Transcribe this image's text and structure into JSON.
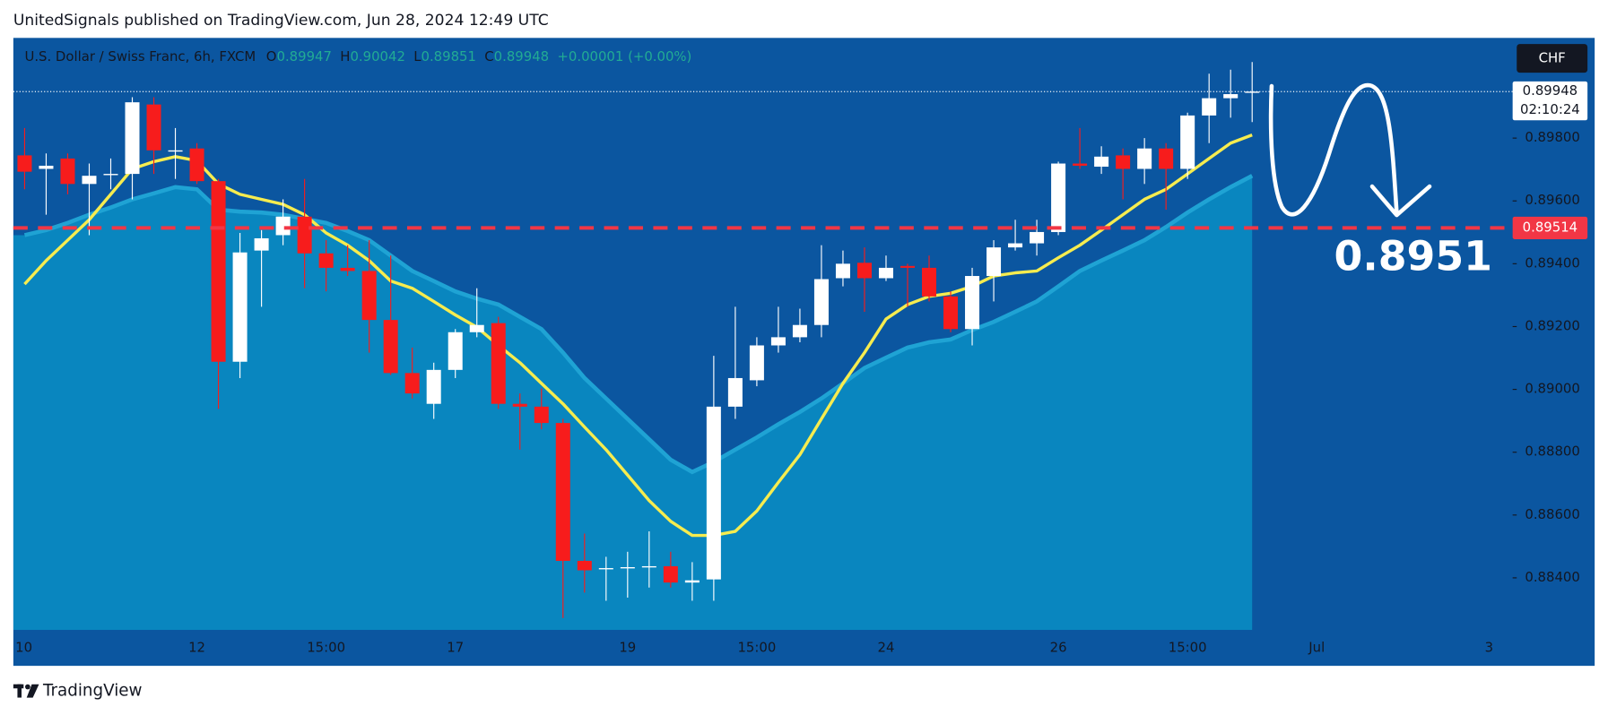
{
  "header": "UnitedSignals published on TradingView.com, Jun 28, 2024 12:49 UTC",
  "footer_brand": "TradingView",
  "chart_data": {
    "type": "candlestick",
    "title": "U.S. Dollar / Swiss Franc, 6h, FXCM",
    "ohlc_labels": [
      "O",
      "H",
      "L",
      "C"
    ],
    "change_label": "+0.00001 (+0.00%)",
    "currency": "CHF",
    "countdown": "02:10:24",
    "annotation": "0.8951",
    "up_color": "#ffffff",
    "down_color": "#f71c1c",
    "categories": [
      "10",
      null,
      null,
      null,
      null,
      null,
      null,
      null,
      "12",
      null,
      null,
      null,
      null,
      null,
      "15:00",
      null,
      null,
      null,
      null,
      null,
      "17",
      null,
      null,
      null,
      null,
      null,
      null,
      null,
      "19",
      null,
      null,
      null,
      null,
      null,
      "15:00",
      null,
      null,
      null,
      null,
      null,
      "24",
      null,
      null,
      null,
      null,
      null,
      null,
      null,
      "26",
      null,
      null,
      null,
      null,
      null,
      "15:00",
      null,
      null,
      null,
      null,
      null,
      "Jul",
      null,
      null,
      null,
      null,
      null,
      null,
      null,
      "3"
    ],
    "open": [
      0.89745,
      0.89702,
      0.89735,
      0.89654,
      0.89686,
      0.89686,
      0.89907,
      0.89761,
      0.89767,
      0.89663,
      0.89088,
      0.89442,
      0.89491,
      0.8955,
      0.89433,
      0.89387,
      0.89377,
      0.89221,
      0.89052,
      0.88954,
      0.89062,
      0.89182,
      0.89211,
      0.88954,
      0.88945,
      0.88893,
      0.88454,
      0.88428,
      0.88431,
      0.88434,
      0.88437,
      0.88385,
      0.88395,
      0.88945,
      0.89029,
      0.8914,
      0.89166,
      0.89205,
      0.89354,
      0.89403,
      0.89354,
      0.89393,
      0.89387,
      0.89296,
      0.89192,
      0.89361,
      0.89452,
      0.89465,
      0.89501,
      0.89719,
      0.89709,
      0.89745,
      0.89702,
      0.89767,
      0.89702,
      0.89872,
      0.89927,
      0.89947,
      null,
      null,
      null,
      null,
      null,
      null,
      null,
      null,
      null,
      null,
      null
    ],
    "high": [
      0.89832,
      0.89751,
      0.89751,
      0.89719,
      0.89735,
      0.8993,
      0.8993,
      0.89832,
      0.89784,
      0.8967,
      0.89498,
      0.89507,
      0.89605,
      0.8967,
      0.89475,
      0.89459,
      0.89475,
      0.89426,
      0.89133,
      0.89085,
      0.89192,
      0.89322,
      0.89231,
      0.88987,
      0.89003,
      0.88906,
      0.88541,
      0.88467,
      0.88483,
      0.88548,
      0.88483,
      0.8845,
      0.89107,
      0.89263,
      0.89166,
      0.89263,
      0.89257,
      0.89459,
      0.89442,
      0.89452,
      0.89426,
      0.894,
      0.89426,
      0.89312,
      0.89387,
      0.89475,
      0.8954,
      0.8954,
      0.89725,
      0.89832,
      0.89774,
      0.89767,
      0.898,
      0.89784,
      0.89881,
      0.90005,
      0.90018,
      0.90042,
      null,
      null,
      null,
      null,
      null,
      null,
      null,
      null,
      null,
      null,
      null
    ],
    "low": [
      0.89637,
      0.89556,
      0.89621,
      0.89491,
      0.89637,
      0.89605,
      0.89686,
      0.8967,
      0.89654,
      0.88938,
      0.89036,
      0.89263,
      0.89459,
      0.89322,
      0.89312,
      0.89361,
      0.89117,
      0.89046,
      0.88971,
      0.88906,
      0.89036,
      0.89166,
      0.88938,
      0.88808,
      0.88873,
      0.88272,
      0.88353,
      0.88327,
      0.88337,
      0.88369,
      0.88369,
      0.88327,
      0.88327,
      0.88906,
      0.8901,
      0.89117,
      0.8915,
      0.89166,
      0.89328,
      0.89247,
      0.89345,
      0.89263,
      0.8928,
      0.89182,
      0.8914,
      0.8928,
      0.89442,
      0.89426,
      0.89491,
      0.89702,
      0.89686,
      0.89605,
      0.89654,
      0.89572,
      0.8967,
      0.89784,
      0.89865,
      0.89851,
      null,
      null,
      null,
      null,
      null,
      null,
      null,
      null,
      null,
      null,
      null
    ],
    "close": [
      0.89693,
      0.89712,
      0.89654,
      0.8968,
      0.89686,
      0.89914,
      0.89761,
      0.89761,
      0.89663,
      0.89088,
      0.89436,
      0.89481,
      0.8955,
      0.89433,
      0.89387,
      0.89377,
      0.89221,
      0.89052,
      0.88987,
      0.89062,
      0.89182,
      0.89205,
      0.88954,
      0.88945,
      0.88893,
      0.88454,
      0.88424,
      0.88431,
      0.88434,
      0.88437,
      0.88385,
      0.88392,
      0.88945,
      0.89036,
      0.8914,
      0.89166,
      0.89205,
      0.89351,
      0.894,
      0.89354,
      0.89387,
      0.89387,
      0.89296,
      0.89192,
      0.89361,
      0.89452,
      0.89465,
      0.89501,
      0.89719,
      0.89712,
      0.89741,
      0.89702,
      0.89767,
      0.89702,
      0.89872,
      0.89927,
      0.8994,
      0.89948,
      null,
      null,
      null,
      null,
      null,
      null,
      null,
      null,
      null,
      null,
      null
    ],
    "overlays": [
      {
        "type": "area",
        "color": "#1fa3d4",
        "fill": "#0986bf",
        "values": [
          0.89491,
          0.89507,
          0.8953,
          0.89556,
          0.89579,
          0.89605,
          0.89624,
          0.89644,
          0.89637,
          0.89572,
          0.89566,
          0.89563,
          0.89556,
          0.89543,
          0.8953,
          0.89504,
          0.89475,
          0.89426,
          0.89377,
          0.89345,
          0.89312,
          0.89289,
          0.8927,
          0.89231,
          0.89192,
          0.89117,
          0.89036,
          0.88971,
          0.88906,
          0.88841,
          0.88776,
          0.88737,
          0.88769,
          0.88808,
          0.88847,
          0.88889,
          0.88928,
          0.88971,
          0.89019,
          0.89068,
          0.89101,
          0.89133,
          0.8915,
          0.89159,
          0.89189,
          0.89215,
          0.89247,
          0.8928,
          0.89328,
          0.89377,
          0.8941,
          0.89442,
          0.89475,
          0.89517,
          0.89563,
          0.89605,
          0.89644,
          0.8968,
          null,
          null,
          null,
          null,
          null,
          null,
          null,
          null,
          null,
          null,
          null
        ]
      },
      {
        "type": "line",
        "color": "#f6ec4f",
        "values": [
          0.89335,
          0.8941,
          0.89475,
          0.8954,
          0.89621,
          0.89702,
          0.89725,
          0.89741,
          0.89728,
          0.89654,
          0.89621,
          0.89605,
          0.89589,
          0.89556,
          0.89498,
          0.89459,
          0.8941,
          0.89345,
          0.89322,
          0.8928,
          0.89237,
          0.89198,
          0.8914,
          0.89085,
          0.89019,
          0.88954,
          0.8888,
          0.88808,
          0.88727,
          0.88646,
          0.8858,
          0.88535,
          0.88535,
          0.88548,
          0.88613,
          0.88704,
          0.88792,
          0.88906,
          0.89019,
          0.89117,
          0.89224,
          0.8927,
          0.89296,
          0.89306,
          0.89328,
          0.89361,
          0.89371,
          0.89377,
          0.89419,
          0.89459,
          0.89507,
          0.89556,
          0.89605,
          0.89637,
          0.89686,
          0.89735,
          0.89784,
          0.8981,
          null,
          null,
          null,
          null,
          null,
          null,
          null,
          null,
          null,
          null,
          null
        ]
      }
    ],
    "price_line": {
      "value": 0.89514,
      "color": "#f23645"
    },
    "ylim": [
      0.88234,
      0.90119
    ],
    "yticks": [
      {
        "value": 0.898,
        "label": "0.89800"
      },
      {
        "value": 0.896,
        "label": "0.89600"
      },
      {
        "value": 0.894,
        "label": "0.89400"
      },
      {
        "value": 0.892,
        "label": "0.89200"
      },
      {
        "value": 0.89,
        "label": "0.89000"
      },
      {
        "value": 0.888,
        "label": "0.88800"
      },
      {
        "value": 0.886,
        "label": "0.88600"
      },
      {
        "value": 0.884,
        "label": "0.88400"
      }
    ],
    "grid": false
  }
}
